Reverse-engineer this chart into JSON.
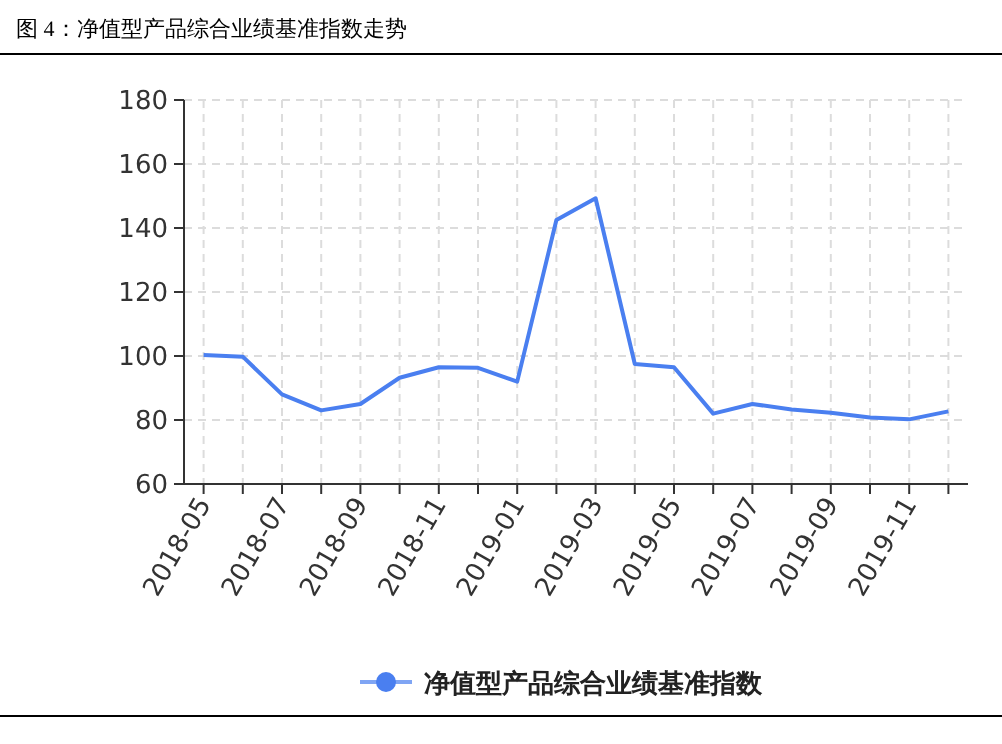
{
  "chart_data": {
    "type": "line",
    "title": "图 4：净值型产品综合业绩基准指数走势",
    "categories": [
      "2018-05",
      null,
      "2018-07",
      null,
      "2018-09",
      null,
      "2018-11",
      null,
      "2019-01",
      null,
      "2019-03",
      null,
      "2019-05",
      null,
      "2019-07",
      null,
      "2019-09",
      null,
      "2019-11",
      null
    ],
    "series": [
      {
        "name": "净值型产品综合业绩基准指数",
        "color": "#4a7ff0",
        "values": [
          100.3,
          99.8,
          88,
          83,
          85,
          93.2,
          96.5,
          96.3,
          92,
          142.5,
          149.3,
          97.5,
          96.5,
          82,
          85,
          83.3,
          82.3,
          80.8,
          80.2,
          82.7
        ]
      }
    ],
    "ylim": [
      60,
      180
    ],
    "yticks": [
      60,
      80,
      100,
      120,
      140,
      160,
      180
    ],
    "grid": true,
    "legend": "bottom"
  }
}
